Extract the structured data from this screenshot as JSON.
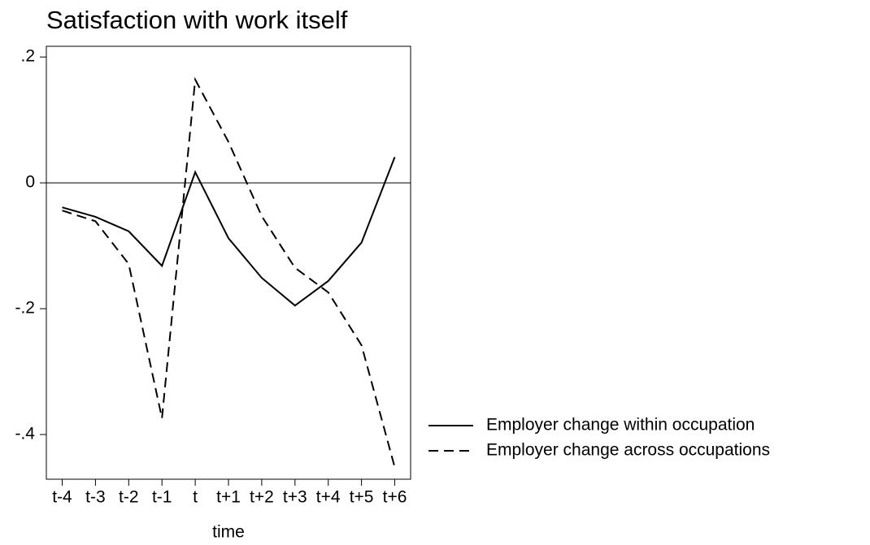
{
  "chart_data": {
    "type": "line",
    "title": "Satisfaction with work itself",
    "x_label": "time",
    "categories": [
      "t-4",
      "t-3",
      "t-2",
      "t-1",
      "t",
      "t+1",
      "t+2",
      "t+3",
      "t+4",
      "t+5",
      "t+6"
    ],
    "series": [
      {
        "name": "Employer change within occupation",
        "color": "#000000",
        "dash": "solid",
        "values": [
          -0.039,
          -0.054,
          -0.077,
          -0.132,
          0.017,
          -0.088,
          -0.151,
          -0.195,
          -0.156,
          -0.095,
          0.041
        ]
      },
      {
        "name": "Employer change across occupations",
        "color": "#000000",
        "dash": "dashed",
        "values": [
          -0.044,
          -0.061,
          -0.129,
          -0.374,
          0.164,
          0.065,
          -0.053,
          -0.135,
          -0.174,
          -0.258,
          -0.452
        ]
      }
    ],
    "ylim": [
      -0.471,
      0.217
    ],
    "yticks": [
      {
        "value": -0.4,
        "label": "-.4"
      },
      {
        "value": -0.2,
        "label": "-.2"
      },
      0,
      {
        "value": 0.2,
        "label": ".2"
      }
    ],
    "reference_line": 0,
    "legend": "right"
  }
}
